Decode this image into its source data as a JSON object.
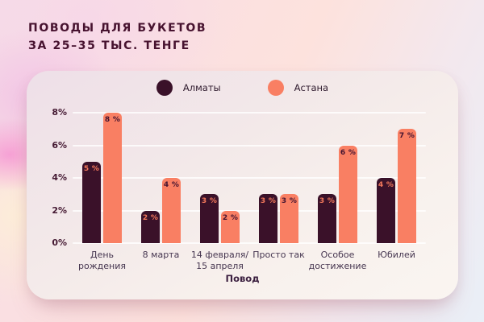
{
  "title": {
    "line1": "ПОВОДЫ ДЛЯ БУКЕТОВ",
    "line2": "ЗА 25–35 ТЫС. ТЕНГЕ"
  },
  "colors": {
    "almaty_bar": "#3a1129",
    "astana_bar": "#f97f63",
    "title_text": "#47122f",
    "card_gridline": "#ffffff"
  },
  "chart_data": {
    "type": "bar",
    "title": "Поводы для букетов за 25–35 тыс. тенге",
    "categories": [
      "День рождения",
      "8 марта",
      "14 февраля/ 15 апреля",
      "Просто так",
      "Особое достижение",
      "Юбилей"
    ],
    "series": [
      {
        "name": "Алматы",
        "color": "#3a1129",
        "label_color": "#f4795c",
        "values": [
          5,
          2,
          3,
          3,
          3,
          4
        ]
      },
      {
        "name": "Астана",
        "color": "#f97f63",
        "label_color": "#451430",
        "values": [
          8,
          4,
          2,
          3,
          6,
          7
        ]
      }
    ],
    "value_suffix": " %",
    "yticks": [
      "0%",
      "2%",
      "4%",
      "6%",
      "8%"
    ],
    "ylim": [
      0,
      8
    ],
    "xlabel": "Повод",
    "grid": true,
    "legend_position": "top"
  }
}
